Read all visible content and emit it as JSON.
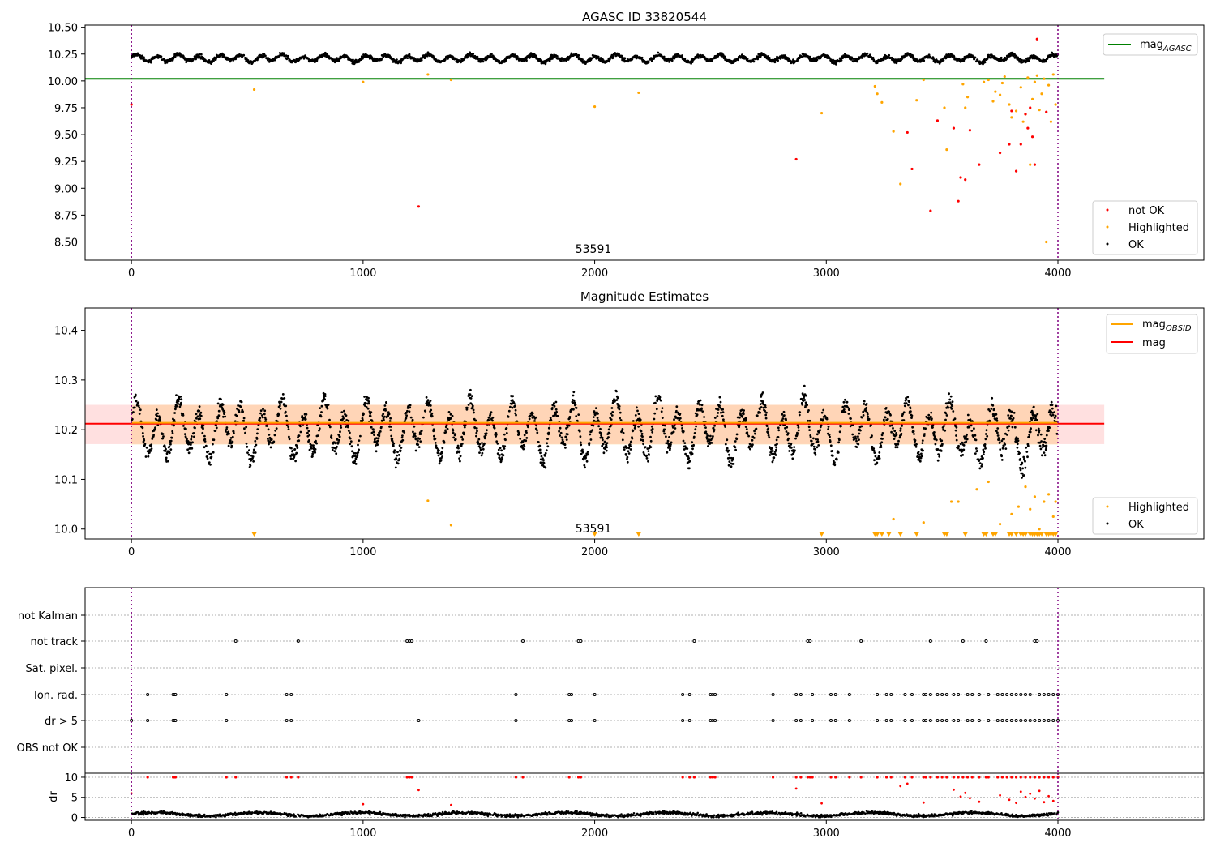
{
  "chart_data": [
    {
      "type": "scatter",
      "title": "AGASC ID 33820544",
      "annotation": "53591",
      "xlim": [
        -200,
        4630
      ],
      "ylim": [
        8.33,
        10.52
      ],
      "x_ticks": [
        "0",
        "1000",
        "2000",
        "3000",
        "4000"
      ],
      "y_ticks": [
        "8.50",
        "8.75",
        "9.00",
        "9.25",
        "9.50",
        "9.75",
        "10.00",
        "10.25",
        "10.50"
      ],
      "grid": false,
      "vertical_lines": [
        0,
        4000
      ],
      "mag_agasc": 10.02,
      "legend_top": {
        "placement": "upper right",
        "entries": [
          {
            "label": "mag",
            "sub": "AGASC",
            "color": "#008000"
          }
        ]
      },
      "legend_bottom": {
        "placement": "lower right",
        "entries": [
          {
            "label": "not OK",
            "color": "#ff0000"
          },
          {
            "label": "Highlighted",
            "color": "#ffa500"
          },
          {
            "label": "OK",
            "color": "#000000"
          }
        ]
      },
      "ok_series": {
        "name": "OK",
        "x_range": [
          0,
          4000
        ],
        "baseline": 10.21,
        "oscillation_amplitude": 0.045,
        "oscillation_period": 90
      },
      "highlighted_points": [
        [
          530,
          9.92
        ],
        [
          1000,
          9.99
        ],
        [
          1280,
          10.06
        ],
        [
          1380,
          10.01
        ],
        [
          2000,
          9.76
        ],
        [
          2190,
          9.89
        ],
        [
          2980,
          9.7
        ],
        [
          3210,
          9.95
        ],
        [
          3220,
          9.88
        ],
        [
          3240,
          9.8
        ],
        [
          3290,
          9.53
        ],
        [
          3320,
          9.04
        ],
        [
          3390,
          9.82
        ],
        [
          3420,
          10.01
        ],
        [
          3510,
          9.75
        ],
        [
          3520,
          9.36
        ],
        [
          3590,
          9.97
        ],
        [
          3600,
          9.75
        ],
        [
          3610,
          9.85
        ],
        [
          3680,
          9.99
        ],
        [
          3700,
          10.01
        ],
        [
          3720,
          9.81
        ],
        [
          3730,
          9.9
        ],
        [
          3750,
          9.87
        ],
        [
          3760,
          9.98
        ],
        [
          3770,
          10.04
        ],
        [
          3790,
          9.78
        ],
        [
          3800,
          9.66
        ],
        [
          3820,
          9.72
        ],
        [
          3840,
          9.94
        ],
        [
          3850,
          9.62
        ],
        [
          3860,
          9.69
        ],
        [
          3870,
          10.03
        ],
        [
          3880,
          9.22
        ],
        [
          3890,
          9.83
        ],
        [
          3900,
          9.99
        ],
        [
          3910,
          10.05
        ],
        [
          3920,
          9.73
        ],
        [
          3930,
          9.88
        ],
        [
          3940,
          10.02
        ],
        [
          3950,
          8.5
        ],
        [
          3960,
          9.96
        ],
        [
          3970,
          9.62
        ],
        [
          3980,
          10.06
        ],
        [
          3990,
          9.78
        ]
      ],
      "not_ok_points": [
        [
          0,
          9.78
        ],
        [
          1240,
          8.83
        ],
        [
          2870,
          9.27
        ],
        [
          3350,
          9.52
        ],
        [
          3370,
          9.18
        ],
        [
          3450,
          8.79
        ],
        [
          3480,
          9.63
        ],
        [
          3550,
          9.56
        ],
        [
          3570,
          8.88
        ],
        [
          3580,
          9.1
        ],
        [
          3600,
          9.08
        ],
        [
          3620,
          9.54
        ],
        [
          3660,
          9.22
        ],
        [
          3750,
          9.33
        ],
        [
          3790,
          9.41
        ],
        [
          3800,
          9.72
        ],
        [
          3820,
          9.16
        ],
        [
          3840,
          9.41
        ],
        [
          3860,
          9.69
        ],
        [
          3870,
          9.56
        ],
        [
          3880,
          9.75
        ],
        [
          3890,
          9.48
        ],
        [
          3900,
          9.22
        ],
        [
          3910,
          10.39
        ],
        [
          3950,
          9.71
        ]
      ]
    },
    {
      "type": "scatter",
      "title": "Magnitude Estimates",
      "annotation": "53591",
      "xlim": [
        -200,
        4630
      ],
      "ylim": [
        9.98,
        10.445
      ],
      "x_ticks": [
        "0",
        "1000",
        "2000",
        "3000",
        "4000"
      ],
      "y_ticks": [
        "10.0",
        "10.1",
        "10.2",
        "10.3",
        "10.4"
      ],
      "grid": false,
      "vertical_lines": [
        0,
        4000
      ],
      "mag": 10.212,
      "mag_band": [
        10.171,
        10.25
      ],
      "mag_obsid_band": [
        10.17,
        10.25
      ],
      "legend_top": {
        "placement": "upper right",
        "entries": [
          {
            "label": "mag",
            "sub": "OBSID",
            "color": "#ffa500"
          },
          {
            "label": "mag",
            "color": "#ff0000"
          }
        ]
      },
      "legend_bottom": {
        "placement": "lower right",
        "entries": [
          {
            "label": "Highlighted",
            "color": "#ffa500"
          },
          {
            "label": "OK",
            "color": "#000000"
          }
        ]
      },
      "highlighted_points": [
        [
          1280,
          10.057
        ],
        [
          1380,
          10.008
        ],
        [
          3290,
          10.02
        ],
        [
          3420,
          10.013
        ],
        [
          3540,
          10.055
        ],
        [
          3570,
          10.055
        ],
        [
          3650,
          10.08
        ],
        [
          3700,
          10.095
        ],
        [
          3750,
          10.01
        ],
        [
          3800,
          10.03
        ],
        [
          3830,
          10.045
        ],
        [
          3860,
          10.085
        ],
        [
          3880,
          10.04
        ],
        [
          3900,
          10.065
        ],
        [
          3920,
          10.0
        ],
        [
          3940,
          10.055
        ],
        [
          3960,
          10.07
        ],
        [
          3980,
          10.025
        ],
        [
          3990,
          10.055
        ]
      ],
      "clipped_markers_x": [
        530,
        2000,
        2190,
        2980,
        3210,
        3220,
        3240,
        3270,
        3320,
        3390,
        3510,
        3520,
        3600,
        3680,
        3690,
        3720,
        3730,
        3790,
        3800,
        3820,
        3840,
        3850,
        3860,
        3880,
        3890,
        3900,
        3910,
        3920,
        3930,
        3950,
        3960,
        3970,
        3980,
        3990
      ]
    },
    {
      "type": "scatter",
      "xlim": [
        -200,
        4630
      ],
      "x_ticks": [
        "0",
        "1000",
        "2000",
        "3000",
        "4000"
      ],
      "vertical_lines": [
        0,
        4000
      ],
      "categories": [
        "not Kalman",
        "not track",
        "Sat. pixel.",
        "Ion. rad.",
        "dr > 5",
        "OBS not OK"
      ],
      "flags": {
        "not track": [
          450,
          720,
          1190,
          1200,
          1210,
          1690,
          1930,
          1940,
          2430,
          2920,
          2930,
          3150,
          3450,
          3590,
          3690,
          3900,
          3910
        ],
        "Ion. rad.": [
          70,
          180,
          185,
          190,
          410,
          670,
          690,
          1660,
          1890,
          1900,
          2000,
          2380,
          2410,
          2500,
          2510,
          2520,
          2770,
          2870,
          2890,
          2940,
          3020,
          3040,
          3100,
          3220,
          3260,
          3280,
          3340,
          3370,
          3420,
          3430,
          3450,
          3480,
          3500,
          3520,
          3550,
          3570,
          3610,
          3630,
          3660,
          3700,
          3740,
          3760,
          3780,
          3800,
          3820,
          3840,
          3860,
          3880,
          3920,
          3940,
          3960,
          3980,
          4000
        ],
        "dr > 5": [
          0,
          70,
          180,
          185,
          190,
          410,
          670,
          690,
          1240,
          1660,
          1890,
          1900,
          2000,
          2380,
          2410,
          2500,
          2510,
          2520,
          2770,
          2870,
          2890,
          2940,
          3020,
          3040,
          3100,
          3220,
          3260,
          3280,
          3340,
          3370,
          3420,
          3430,
          3450,
          3480,
          3500,
          3520,
          3550,
          3570,
          3610,
          3630,
          3660,
          3700,
          3740,
          3760,
          3780,
          3800,
          3820,
          3840,
          3860,
          3880,
          3900,
          3920,
          3940,
          3960,
          3980,
          4000
        ]
      }
    },
    {
      "type": "scatter",
      "xlim": [
        -200,
        4630
      ],
      "ylim": [
        -0.7,
        11
      ],
      "ylabel": "dr",
      "x_ticks": [
        "0",
        "1000",
        "2000",
        "3000",
        "4000"
      ],
      "y_ticks": [
        "0",
        "5",
        "10"
      ],
      "vertical_lines": [
        0,
        4000
      ],
      "red_points_at_10": [
        70,
        180,
        185,
        190,
        410,
        450,
        670,
        690,
        720,
        1190,
        1200,
        1210,
        1660,
        1690,
        1890,
        1930,
        1940,
        2380,
        2410,
        2430,
        2500,
        2510,
        2520,
        2770,
        2870,
        2890,
        2920,
        2930,
        2940,
        3020,
        3040,
        3100,
        3150,
        3220,
        3260,
        3280,
        3340,
        3370,
        3420,
        3430,
        3450,
        3480,
        3500,
        3520,
        3550,
        3570,
        3590,
        3610,
        3630,
        3660,
        3690,
        3700,
        3740,
        3760,
        3780,
        3800,
        3820,
        3840,
        3860,
        3880,
        3900,
        3920,
        3940,
        3960,
        3980,
        4000
      ],
      "red_points": [
        [
          0,
          6
        ],
        [
          1000,
          3.3
        ],
        [
          1240,
          6.8
        ],
        [
          1380,
          3.1
        ],
        [
          2870,
          7.2
        ],
        [
          2980,
          3.5
        ],
        [
          3320,
          7.8
        ],
        [
          3350,
          8.4
        ],
        [
          3420,
          3.7
        ],
        [
          3550,
          6.9
        ],
        [
          3580,
          5.2
        ],
        [
          3600,
          6.1
        ],
        [
          3620,
          4.8
        ],
        [
          3660,
          3.9
        ],
        [
          3750,
          5.5
        ],
        [
          3790,
          4.4
        ],
        [
          3820,
          3.6
        ],
        [
          3840,
          6.4
        ],
        [
          3860,
          5.1
        ],
        [
          3880,
          5.9
        ],
        [
          3900,
          4.7
        ],
        [
          3920,
          6.6
        ],
        [
          3940,
          3.8
        ],
        [
          3960,
          5.3
        ],
        [
          3980,
          4.1
        ]
      ],
      "ok_series": {
        "name": "OK",
        "x_range": [
          0,
          4000
        ],
        "baseline": 0.8,
        "spread": 0.6
      }
    }
  ]
}
